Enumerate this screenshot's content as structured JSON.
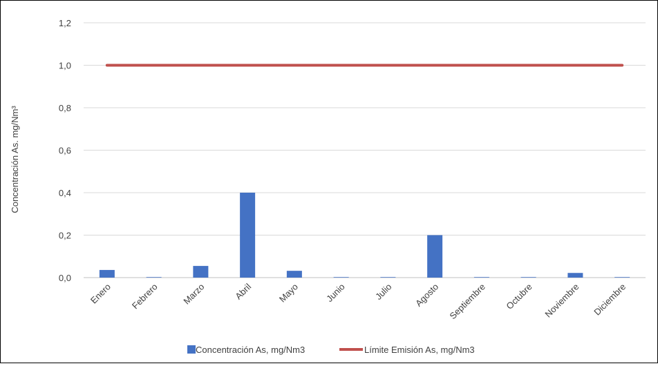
{
  "chart_data": {
    "type": "bar",
    "categories": [
      "Enero",
      "Febrero",
      "Marzo",
      "Abril",
      "Mayo",
      "Junio",
      "Julio",
      "Agosto",
      "Septiembre",
      "Octubre",
      "Noviembre",
      "Diciembre"
    ],
    "series": [
      {
        "name": "Concentración As, mg/Nm3",
        "type": "bar",
        "color": "#4472C4",
        "values": [
          0.036,
          0.002,
          0.055,
          0.4,
          0.032,
          0.002,
          0.0,
          0.2,
          0.0,
          0.002,
          0.022,
          0.0
        ]
      },
      {
        "name": "Límite Emisión As, mg/Nm3",
        "type": "line",
        "color": "#C0504D",
        "values": [
          1.0,
          1.0,
          1.0,
          1.0,
          1.0,
          1.0,
          1.0,
          1.0,
          1.0,
          1.0,
          1.0,
          1.0
        ]
      }
    ],
    "ylabel": "Concentración As. mg/Nm³",
    "ylim": [
      0,
      1.2
    ],
    "yticks": [
      "0,0",
      "0,2",
      "0,4",
      "0,6",
      "0,8",
      "1,0",
      "1,2"
    ],
    "grid": true,
    "legend": "bottom"
  }
}
